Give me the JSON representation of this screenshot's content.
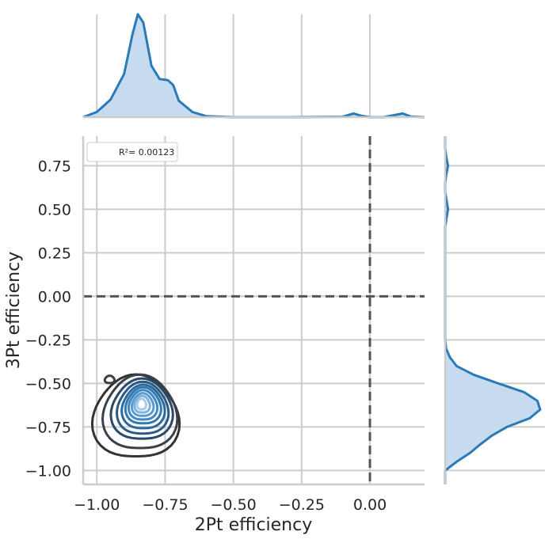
{
  "chart_data": {
    "type": "jointplot-kde",
    "xlabel": "2Pt efficiency",
    "ylabel": "3Pt efficiency",
    "xlim": [
      -1.05,
      0.2
    ],
    "ylim": [
      -1.08,
      0.92
    ],
    "x_ticks": [
      -1.0,
      -0.75,
      -0.5,
      -0.25,
      0.0
    ],
    "x_tick_labels": [
      "−1.00",
      "−0.75",
      "−0.50",
      "−0.25",
      "0.00"
    ],
    "y_ticks": [
      -1.0,
      -0.75,
      -0.5,
      -0.25,
      0.0,
      0.25,
      0.5,
      0.75
    ],
    "y_tick_labels": [
      "−1.00",
      "−0.75",
      "−0.50",
      "−0.25",
      "0.00",
      "0.25",
      "0.50",
      "0.75"
    ],
    "grid": true,
    "reference_lines": {
      "x": 0.0,
      "y": 0.0,
      "style": "dashed"
    },
    "legend": {
      "text": "R²= 0.00123",
      "placement": "top-left"
    },
    "colors": {
      "kde": "#2a7ab8",
      "kde_fill": "#c6dbef",
      "ref_line": "#555555",
      "grid": "#cccccc"
    },
    "marginal_x": {
      "x": [
        -1.05,
        -1.0,
        -0.95,
        -0.9,
        -0.87,
        -0.85,
        -0.83,
        -0.8,
        -0.77,
        -0.74,
        -0.72,
        -0.7,
        -0.65,
        -0.6,
        -0.5,
        -0.3,
        -0.1,
        -0.06,
        -0.03,
        0.0,
        0.05,
        0.09,
        0.12,
        0.15,
        0.2
      ],
      "density": [
        0.0,
        0.05,
        0.17,
        0.42,
        0.8,
        1.0,
        0.92,
        0.5,
        0.37,
        0.36,
        0.31,
        0.16,
        0.05,
        0.01,
        0.0,
        0.0,
        0.004,
        0.035,
        0.012,
        0.0,
        0.0,
        0.02,
        0.035,
        0.005,
        0.0
      ]
    },
    "marginal_y": {
      "y": [
        -1.08,
        -1.0,
        -0.95,
        -0.9,
        -0.85,
        -0.8,
        -0.75,
        -0.7,
        -0.65,
        -0.6,
        -0.55,
        -0.5,
        -0.45,
        -0.4,
        -0.35,
        -0.3,
        -0.25,
        0.0,
        0.4,
        0.45,
        0.5,
        0.55,
        0.6,
        0.65,
        0.7,
        0.75,
        0.8,
        0.85,
        0.92
      ],
      "density": [
        0.0,
        0.0,
        0.12,
        0.26,
        0.37,
        0.49,
        0.65,
        0.89,
        1.0,
        0.97,
        0.83,
        0.56,
        0.3,
        0.12,
        0.05,
        0.01,
        0.0,
        0.0,
        0.0,
        0.015,
        0.03,
        0.015,
        0.0,
        0.0,
        0.012,
        0.03,
        0.012,
        0.0,
        0.0
      ]
    },
    "kde_contours": [
      {
        "cx": -0.857,
        "cy": -0.698,
        "rx": 0.152,
        "ry": 0.245,
        "color": "#333333"
      },
      {
        "cx": -0.842,
        "cy": -0.673,
        "rx": 0.13,
        "ry": 0.22,
        "color": "#3b3f48"
      },
      {
        "cx": -0.835,
        "cy": -0.655,
        "rx": 0.108,
        "ry": 0.18,
        "color": "#2b4a6a"
      },
      {
        "cx": -0.832,
        "cy": -0.648,
        "rx": 0.09,
        "ry": 0.155,
        "color": "#2b5a86"
      },
      {
        "cx": -0.83,
        "cy": -0.64,
        "rx": 0.075,
        "ry": 0.13,
        "color": "#2b6aa0"
      },
      {
        "cx": -0.83,
        "cy": -0.632,
        "rx": 0.062,
        "ry": 0.108,
        "color": "#3079b2"
      },
      {
        "cx": -0.831,
        "cy": -0.628,
        "rx": 0.05,
        "ry": 0.088,
        "color": "#3f89c2"
      },
      {
        "cx": -0.832,
        "cy": -0.625,
        "rx": 0.038,
        "ry": 0.068,
        "color": "#5a9ccf"
      },
      {
        "cx": -0.834,
        "cy": -0.622,
        "rx": 0.027,
        "ry": 0.05,
        "color": "#7cb2dc"
      },
      {
        "cx": -0.836,
        "cy": -0.62,
        "rx": 0.016,
        "ry": 0.032,
        "color": "#a7cbe8"
      },
      {
        "cx": -0.953,
        "cy": -0.478,
        "rx": 0.017,
        "ry": 0.022,
        "color": "#3b3f48"
      }
    ]
  }
}
